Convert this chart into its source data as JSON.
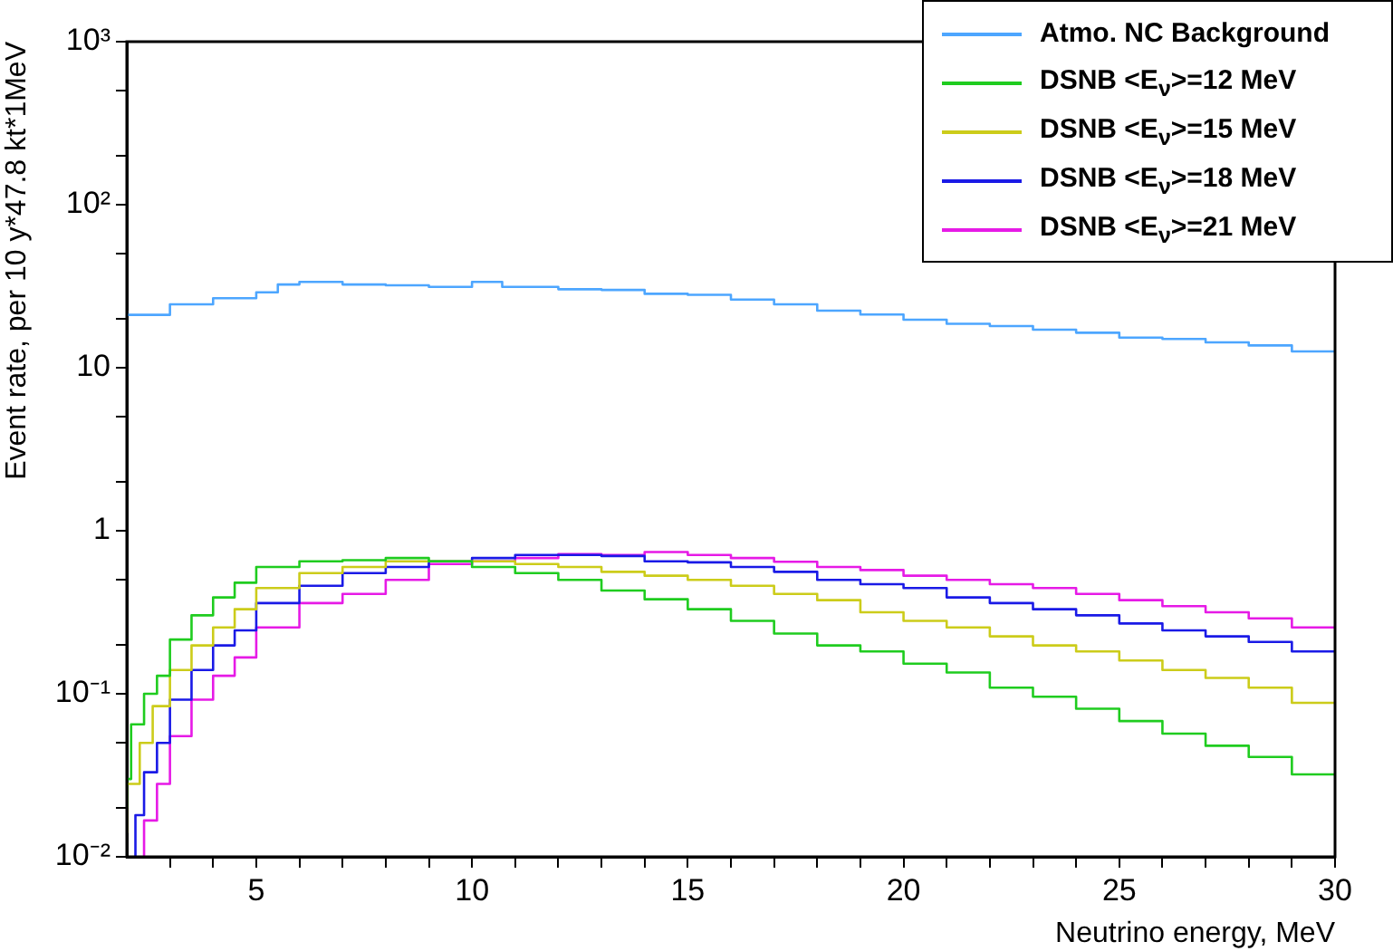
{
  "chart_data": {
    "type": "step",
    "xlabel": "Neutrino energy, MeV",
    "ylabel": "Event rate, per 10 y*47.8 kt*1MeV",
    "log": "y",
    "grid": false,
    "legend": "top right",
    "marker": "none",
    "line_style": "solid",
    "xlim": [
      2,
      30
    ],
    "xticks": [
      {
        "value": 3,
        "label": null
      },
      {
        "value": 4,
        "label": null
      },
      5,
      {
        "value": 6,
        "label": null
      },
      {
        "value": 7,
        "label": null
      },
      {
        "value": 8,
        "label": null
      },
      {
        "value": 9,
        "label": null
      },
      10,
      {
        "value": 11,
        "label": null
      },
      {
        "value": 12,
        "label": null
      },
      {
        "value": 13,
        "label": null
      },
      {
        "value": 14,
        "label": null
      },
      15,
      {
        "value": 16,
        "label": null
      },
      {
        "value": 17,
        "label": null
      },
      {
        "value": 18,
        "label": null
      },
      {
        "value": 19,
        "label": null
      },
      20,
      {
        "value": 21,
        "label": null
      },
      {
        "value": 22,
        "label": null
      },
      {
        "value": 23,
        "label": null
      },
      {
        "value": 24,
        "label": null
      },
      25,
      {
        "value": 26,
        "label": null
      },
      {
        "value": 27,
        "label": null
      },
      {
        "value": 28,
        "label": null
      },
      {
        "value": 29,
        "label": null
      },
      30
    ],
    "ylim": [
      0.01,
      1000
    ],
    "yticks": [
      {
        "value": 0.01,
        "label": "10⁻²"
      },
      {
        "value": 0.02,
        "label": null
      },
      {
        "value": 0.05,
        "label": null
      },
      {
        "value": 0.1,
        "label": "10⁻¹"
      },
      {
        "value": 0.2,
        "label": null
      },
      {
        "value": 0.5,
        "label": null
      },
      {
        "value": 1,
        "label": "1"
      },
      {
        "value": 2,
        "label": null
      },
      {
        "value": 5,
        "label": null
      },
      {
        "value": 10,
        "label": "10"
      },
      {
        "value": 20,
        "label": null
      },
      {
        "value": 50,
        "label": null
      },
      {
        "value": 100,
        "label": "10²"
      },
      {
        "value": 200,
        "label": null
      },
      {
        "value": 500,
        "label": null
      },
      {
        "value": 1000,
        "label": "10³"
      }
    ],
    "series": [
      {
        "name": "Atmo. NC Background",
        "color": "#4da6ff",
        "x": [
          2,
          3,
          4,
          5,
          5.5,
          6,
          7,
          8,
          9,
          10,
          10.7,
          12,
          13,
          14,
          15,
          16,
          17,
          18,
          19,
          20,
          21,
          22,
          23,
          24,
          25,
          26,
          27,
          28,
          29,
          30
        ],
        "values": [
          22.4,
          21.1,
          24.5,
          26.7,
          29,
          32.4,
          33.6,
          32.4,
          32,
          31.3,
          33.6,
          31.3,
          30.3,
          30,
          28.4,
          28,
          26.2,
          24.5,
          22.4,
          21.2,
          19.7,
          18.6,
          18,
          17.1,
          16.4,
          15.3,
          15,
          14.3,
          13.7,
          12.6
        ]
      },
      {
        "name": "DSNB <E$_{ν}$>=12 MeV",
        "color": "#1fcc1f",
        "x": [
          2,
          2.1,
          2.4,
          2.7,
          3,
          3.5,
          4,
          4.5,
          5,
          6,
          7,
          8,
          9,
          10,
          11,
          12,
          13,
          14,
          15,
          16,
          17,
          18,
          19,
          20,
          21,
          22,
          23,
          24,
          25,
          26,
          27,
          28,
          29,
          30
        ],
        "values": [
          0.02,
          0.03,
          0.065,
          0.1,
          0.129,
          0.215,
          0.303,
          0.39,
          0.48,
          0.6,
          0.65,
          0.66,
          0.68,
          0.65,
          0.6,
          0.55,
          0.5,
          0.43,
          0.38,
          0.33,
          0.28,
          0.234,
          0.198,
          0.182,
          0.153,
          0.135,
          0.109,
          0.096,
          0.081,
          0.068,
          0.057,
          0.048,
          0.041,
          0.032
        ]
      },
      {
        "name": "DSNB <E$_{ν}$>=15 MeV",
        "color": "#cccc1a",
        "x": [
          2,
          2.3,
          2.6,
          3,
          3.5,
          4,
          4.5,
          5,
          6,
          7,
          8,
          9,
          10,
          11,
          12,
          13,
          14,
          15,
          16,
          17,
          18,
          19,
          20,
          21,
          22,
          23,
          24,
          25,
          26,
          27,
          28,
          29,
          30
        ],
        "values": [
          0.014,
          0.028,
          0.05,
          0.084,
          0.14,
          0.198,
          0.255,
          0.33,
          0.445,
          0.55,
          0.6,
          0.65,
          0.65,
          0.65,
          0.625,
          0.6,
          0.56,
          0.53,
          0.5,
          0.46,
          0.41,
          0.375,
          0.316,
          0.28,
          0.255,
          0.225,
          0.198,
          0.182,
          0.16,
          0.14,
          0.125,
          0.109,
          0.088
        ]
      },
      {
        "name": "DSNB <E$_{ν}$>=18 MeV",
        "color": "#1a1ae6",
        "x": [
          2.2,
          2.4,
          2.7,
          3,
          3.5,
          4,
          4.5,
          5,
          6,
          7,
          8,
          9,
          10,
          11,
          12,
          13,
          14,
          15,
          16,
          17,
          18,
          19,
          20,
          21,
          22,
          23,
          24,
          25,
          26,
          27,
          28,
          29,
          30
        ],
        "values": [
          0.01,
          0.018,
          0.033,
          0.05,
          0.092,
          0.14,
          0.198,
          0.245,
          0.36,
          0.46,
          0.55,
          0.6,
          0.65,
          0.68,
          0.71,
          0.71,
          0.7,
          0.65,
          0.64,
          0.6,
          0.56,
          0.5,
          0.47,
          0.445,
          0.39,
          0.36,
          0.33,
          0.303,
          0.27,
          0.245,
          0.225,
          0.208,
          0.182
        ]
      },
      {
        "name": "DSNB <E$_{ν}$>=21 MeV",
        "color": "#e61ae6",
        "x": [
          2.4,
          2.7,
          3,
          3.5,
          4,
          4.5,
          5,
          6,
          7,
          8,
          9,
          10,
          11,
          12,
          13,
          14,
          15,
          16,
          17,
          18,
          19,
          20,
          21,
          22,
          23,
          24,
          25,
          26,
          27,
          28,
          29,
          30
        ],
        "values": [
          0.01,
          0.0167,
          0.028,
          0.055,
          0.092,
          0.129,
          0.167,
          0.255,
          0.36,
          0.41,
          0.5,
          0.625,
          0.65,
          0.68,
          0.72,
          0.71,
          0.74,
          0.71,
          0.68,
          0.645,
          0.6,
          0.574,
          0.53,
          0.5,
          0.47,
          0.445,
          0.41,
          0.375,
          0.345,
          0.316,
          0.29,
          0.255
        ]
      }
    ]
  }
}
